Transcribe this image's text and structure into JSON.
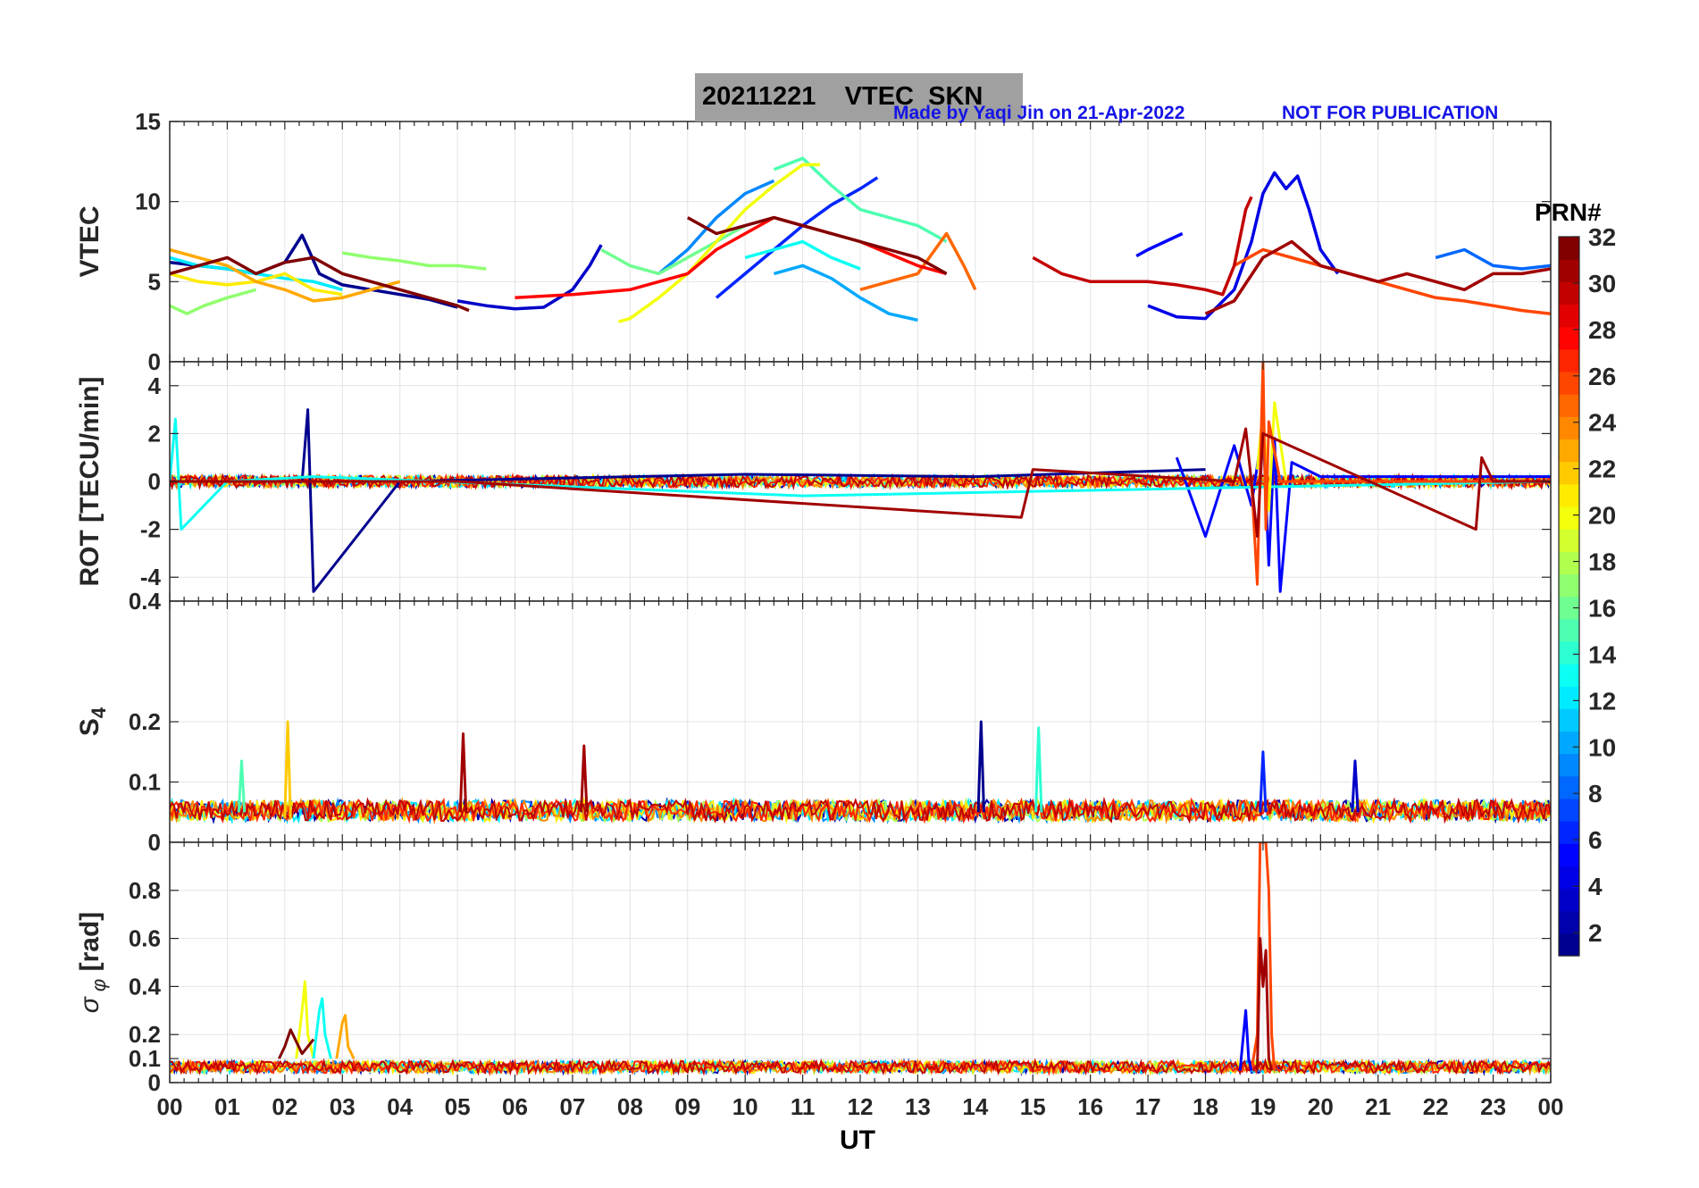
{
  "header": {
    "title": "20211221    VTEC  SKN",
    "credit": "Made by Yaqi Jin on 21-Apr-2022",
    "notice": "NOT FOR PUBLICATION"
  },
  "colorbar": {
    "title": "PRN#",
    "ticks": [
      "32",
      "30",
      "28",
      "26",
      "24",
      "22",
      "20",
      "18",
      "16",
      "14",
      "12",
      "10",
      "8",
      "6",
      "4",
      "2"
    ],
    "range": [
      1,
      32
    ],
    "colormap": "jet",
    "colors": [
      "#00008f",
      "#0000ff",
      "#0080ff",
      "#00ffff",
      "#80ff80",
      "#ffff00",
      "#ff8000",
      "#ff0000",
      "#800000"
    ]
  },
  "chart_data": [
    {
      "type": "line",
      "ylabel": "VTEC",
      "ylim": [
        0,
        15
      ],
      "yticks": [
        "0",
        "5",
        "10",
        "15"
      ],
      "xlim": [
        0,
        24
      ],
      "grid": true,
      "series": [
        {
          "prn": 1,
          "x": [
            0.0,
            0.5,
            1.0,
            1.5,
            2.0,
            2.3,
            2.6,
            3.0,
            3.5,
            4.0,
            4.5,
            5.0
          ],
          "values": [
            6.2,
            6.0,
            5.8,
            5.5,
            6.2,
            7.9,
            5.5,
            4.8,
            4.5,
            4.2,
            3.9,
            3.4
          ]
        },
        {
          "prn": 3,
          "x": [
            5.0,
            5.5,
            6.0,
            6.5,
            7.0,
            7.3,
            7.5
          ],
          "values": [
            3.8,
            3.5,
            3.3,
            3.4,
            4.5,
            6.0,
            7.3
          ]
        },
        {
          "prn": 5,
          "x": [
            16.8,
            17.0,
            17.3,
            17.6
          ],
          "values": [
            6.6,
            7.0,
            7.5,
            8.0
          ]
        },
        {
          "prn": 4,
          "x": [
            17.0,
            17.5,
            18.0,
            18.5,
            18.8,
            19.0,
            19.2,
            19.4,
            19.6,
            19.8,
            20.0,
            20.3
          ],
          "values": [
            3.5,
            2.8,
            2.7,
            4.5,
            7.5,
            10.5,
            11.8,
            10.8,
            11.6,
            9.5,
            7.0,
            5.5
          ]
        },
        {
          "prn": 6,
          "x": [
            9.5,
            10.0,
            10.5,
            11.0,
            11.5,
            12.0,
            12.3
          ],
          "values": [
            4.0,
            5.5,
            7.0,
            8.5,
            9.8,
            10.8,
            11.5
          ]
        },
        {
          "prn": 8,
          "x": [
            22.0,
            22.5,
            23.0,
            23.5,
            24.0
          ],
          "values": [
            6.5,
            7.0,
            6.0,
            5.8,
            6.0
          ]
        },
        {
          "prn": 9,
          "x": [
            8.5,
            9.0,
            9.5,
            10.0,
            10.5
          ],
          "values": [
            5.5,
            7.0,
            9.0,
            10.5,
            11.3
          ]
        },
        {
          "prn": 10,
          "x": [
            10.5,
            11.0,
            11.5,
            12.0,
            12.5,
            13.0
          ],
          "values": [
            5.5,
            6.0,
            5.2,
            4.0,
            3.0,
            2.6
          ]
        },
        {
          "prn": 12,
          "x": [
            0.0,
            0.5,
            1.0,
            1.5,
            2.0,
            2.5,
            3.0
          ],
          "values": [
            6.5,
            6.0,
            5.8,
            5.5,
            5.2,
            5.0,
            4.5
          ]
        },
        {
          "prn": 13,
          "x": [
            10.0,
            10.5,
            11.0,
            11.5,
            12.0
          ],
          "values": [
            6.5,
            7.0,
            7.5,
            6.5,
            5.8
          ]
        },
        {
          "prn": 15,
          "x": [
            10.5,
            11.0,
            11.5,
            12.0,
            12.5,
            13.0,
            13.5
          ],
          "values": [
            12.0,
            12.7,
            11.0,
            9.5,
            9.0,
            8.5,
            7.5
          ]
        },
        {
          "prn": 16,
          "x": [
            7.5,
            8.0,
            8.5,
            9.0,
            9.5,
            10.0
          ],
          "values": [
            7.0,
            6.0,
            5.5,
            6.5,
            7.5,
            8.5
          ]
        },
        {
          "prn": 17,
          "x": [
            0.0,
            0.3,
            0.6,
            1.0,
            1.5
          ],
          "values": [
            3.5,
            3.0,
            3.5,
            4.0,
            4.5
          ]
        },
        {
          "prn": 17,
          "x": [
            3.0,
            3.5,
            4.0,
            4.5,
            5.0,
            5.5
          ],
          "values": [
            6.8,
            6.5,
            6.3,
            6.0,
            6.0,
            5.8
          ]
        },
        {
          "prn": 20,
          "x": [
            7.8,
            8.0,
            8.5,
            9.0,
            9.5,
            10.0,
            10.5,
            11.0,
            11.3
          ],
          "values": [
            2.5,
            2.7,
            4.0,
            5.5,
            7.5,
            9.5,
            11.0,
            12.3,
            12.3
          ]
        },
        {
          "prn": 21,
          "x": [
            0.0,
            0.5,
            1.0,
            1.5,
            2.0,
            2.5,
            3.0
          ],
          "values": [
            5.5,
            5.0,
            4.8,
            5.0,
            5.5,
            4.5,
            4.2
          ]
        },
        {
          "prn": 23,
          "x": [
            0.0,
            0.5,
            1.0,
            1.5,
            2.0,
            2.5,
            3.0,
            3.5,
            4.0
          ],
          "values": [
            7.0,
            6.5,
            6.0,
            5.0,
            4.5,
            3.8,
            4.0,
            4.5,
            5.0
          ]
        },
        {
          "prn": 25,
          "x": [
            12.0,
            12.5,
            13.0,
            13.3,
            13.5,
            13.8,
            14.0
          ],
          "values": [
            4.5,
            5.0,
            5.5,
            7.0,
            8.0,
            6.0,
            4.5
          ]
        },
        {
          "prn": 26,
          "x": [
            18.5,
            19.0,
            19.5,
            20.0,
            20.5,
            21.0,
            21.5,
            22.0,
            22.5,
            23.0,
            23.5,
            24.0
          ],
          "values": [
            6.0,
            7.0,
            6.5,
            6.0,
            5.5,
            5.0,
            4.5,
            4.0,
            3.8,
            3.5,
            3.2,
            3.0
          ]
        },
        {
          "prn": 28,
          "x": [
            6.0,
            7.0,
            8.0,
            9.0,
            9.5,
            10.0,
            10.5,
            11.0,
            12.0,
            13.0,
            13.5
          ],
          "values": [
            4.0,
            4.2,
            4.5,
            5.5,
            7.0,
            8.0,
            9.0,
            8.5,
            7.5,
            6.0,
            5.5
          ]
        },
        {
          "prn": 30,
          "x": [
            15.0,
            15.5,
            16.0,
            16.5,
            17.0,
            17.5,
            18.0,
            18.3,
            18.5,
            18.7,
            18.8
          ],
          "values": [
            6.5,
            5.5,
            5.0,
            5.0,
            5.0,
            4.8,
            4.5,
            4.2,
            6.0,
            9.5,
            10.3
          ]
        },
        {
          "prn": 31,
          "x": [
            18.0,
            18.5,
            19.0,
            19.5,
            20.0,
            20.5,
            21.0,
            21.5,
            22.0,
            22.5,
            23.0,
            23.5,
            24.0
          ],
          "values": [
            3.0,
            3.8,
            6.5,
            7.5,
            6.0,
            5.5,
            5.0,
            5.5,
            5.0,
            4.5,
            5.5,
            5.5,
            5.8
          ]
        },
        {
          "prn": 32,
          "x": [
            0.0,
            0.5,
            1.0,
            1.5,
            2.0,
            2.5,
            3.0,
            3.5,
            4.0,
            4.5,
            5.0,
            5.2
          ],
          "values": [
            5.5,
            6.0,
            6.5,
            5.5,
            6.2,
            6.5,
            5.5,
            5.0,
            4.5,
            4.0,
            3.5,
            3.2
          ]
        },
        {
          "prn": 32,
          "x": [
            9.0,
            9.5,
            10.0,
            10.5,
            11.0,
            11.5,
            12.0,
            12.5,
            13.0,
            13.5
          ],
          "values": [
            9.0,
            8.0,
            8.5,
            9.0,
            8.5,
            8.0,
            7.5,
            7.0,
            6.5,
            5.5
          ]
        }
      ]
    },
    {
      "type": "line",
      "ylabel": "ROT [TECU/min]",
      "ylim": [
        -5,
        5
      ],
      "yticks": [
        "-4",
        "-2",
        "0",
        "2",
        "4"
      ],
      "xlim": [
        0,
        24
      ],
      "grid": true,
      "series": [
        {
          "prn": 1,
          "x": [
            0.0,
            2.3,
            2.4,
            2.5,
            4.0,
            10.0,
            14.0,
            18.0
          ],
          "values": [
            0.0,
            0.0,
            3.0,
            -4.6,
            0.0,
            0.3,
            0.2,
            0.5
          ]
        },
        {
          "prn": 5,
          "x": [
            17.5,
            18.0,
            18.5,
            18.8,
            19.0,
            19.1,
            19.2,
            19.3,
            19.5,
            20.0,
            24.0
          ],
          "values": [
            1.0,
            -2.3,
            1.5,
            -1.0,
            2.3,
            -3.5,
            1.8,
            -4.6,
            0.8,
            0.2,
            0.2
          ]
        },
        {
          "prn": 13,
          "x": [
            0.0,
            0.1,
            0.2,
            1.0,
            2.5,
            11.0,
            24.0
          ],
          "values": [
            0.0,
            2.6,
            -2.0,
            0.0,
            0.2,
            -0.6,
            0.0
          ]
        },
        {
          "prn": 20,
          "x": [
            18.9,
            19.0,
            19.1,
            19.2,
            19.4,
            24.0
          ],
          "values": [
            0.5,
            3.0,
            -1.2,
            3.3,
            0.0,
            0.0
          ]
        },
        {
          "prn": 26,
          "x": [
            18.8,
            18.9,
            19.0,
            19.05,
            19.1,
            19.3,
            24.0
          ],
          "values": [
            0.0,
            -4.3,
            5.0,
            -2.0,
            2.5,
            0.0,
            0.0
          ]
        },
        {
          "prn": 31,
          "x": [
            0.0,
            5.0,
            14.8,
            15.0,
            18.5,
            18.7,
            18.9,
            19.0,
            22.7,
            22.8,
            23.0,
            24.0
          ],
          "values": [
            0.0,
            0.0,
            -1.5,
            0.5,
            0.0,
            2.2,
            -2.3,
            2.0,
            -2.0,
            1.0,
            0.0,
            0.0
          ]
        }
      ]
    },
    {
      "type": "line",
      "ylabel": "S4",
      "ylim": [
        0,
        0.4
      ],
      "yticks": [
        "0",
        "0.1",
        "0.2",
        "0.4"
      ],
      "xlim": [
        0,
        24
      ],
      "grid": true,
      "series": [
        {
          "prn": 1,
          "x": [
            14.05,
            14.1,
            14.15
          ],
          "values": [
            0.05,
            0.2,
            0.05
          ]
        },
        {
          "prn": 14,
          "x": [
            15.05,
            15.1,
            15.15
          ],
          "values": [
            0.05,
            0.19,
            0.05
          ]
        },
        {
          "prn": 22,
          "x": [
            2.0,
            2.05,
            2.1
          ],
          "values": [
            0.04,
            0.2,
            0.04
          ]
        },
        {
          "prn": 31,
          "x": [
            5.05,
            5.1,
            5.15
          ],
          "values": [
            0.05,
            0.18,
            0.05
          ]
        },
        {
          "prn": 31,
          "x": [
            7.15,
            7.2,
            7.25
          ],
          "values": [
            0.05,
            0.16,
            0.05
          ]
        },
        {
          "prn": 15,
          "x": [
            1.2,
            1.25,
            1.3
          ],
          "values": [
            0.05,
            0.135,
            0.05
          ]
        },
        {
          "prn": 6,
          "x": [
            18.95,
            19.0,
            19.05
          ],
          "values": [
            0.05,
            0.15,
            0.05
          ]
        },
        {
          "prn": 3,
          "x": [
            20.55,
            20.6,
            20.65
          ],
          "values": [
            0.05,
            0.135,
            0.05
          ]
        }
      ]
    },
    {
      "type": "line",
      "ylabel": "σ_φ [rad]",
      "ylim": [
        0,
        1
      ],
      "yticks": [
        "0",
        "0.1",
        "0.2",
        "0.4",
        "0.6",
        "0.8"
      ],
      "xlim": [
        0,
        24
      ],
      "grid": true,
      "series": [
        {
          "prn": 26,
          "x": [
            18.8,
            18.9,
            18.95,
            19.0,
            19.05,
            19.1,
            19.15,
            19.2
          ],
          "values": [
            0.05,
            0.2,
            1.0,
            1.0,
            1.0,
            0.8,
            0.2,
            0.05
          ]
        },
        {
          "prn": 31,
          "x": [
            18.9,
            18.95,
            19.0,
            19.05,
            19.1,
            19.15
          ],
          "values": [
            0.05,
            0.6,
            0.4,
            0.55,
            0.1,
            0.05
          ]
        },
        {
          "prn": 5,
          "x": [
            18.6,
            18.7,
            18.75,
            18.8
          ],
          "values": [
            0.05,
            0.3,
            0.1,
            0.05
          ]
        },
        {
          "prn": 20,
          "x": [
            2.2,
            2.3,
            2.35,
            2.4,
            2.5
          ],
          "values": [
            0.1,
            0.3,
            0.42,
            0.2,
            0.1
          ]
        },
        {
          "prn": 13,
          "x": [
            2.5,
            2.6,
            2.65,
            2.7,
            2.8
          ],
          "values": [
            0.1,
            0.3,
            0.35,
            0.2,
            0.1
          ]
        },
        {
          "prn": 23,
          "x": [
            2.9,
            3.0,
            3.05,
            3.1,
            3.2
          ],
          "values": [
            0.1,
            0.25,
            0.28,
            0.15,
            0.1
          ]
        },
        {
          "prn": 32,
          "x": [
            1.9,
            2.0,
            2.1,
            2.3,
            2.5
          ],
          "values": [
            0.1,
            0.15,
            0.22,
            0.12,
            0.18
          ]
        }
      ]
    }
  ],
  "xaxis": {
    "label": "UT",
    "ticks": [
      "00",
      "01",
      "02",
      "03",
      "04",
      "05",
      "06",
      "07",
      "08",
      "09",
      "10",
      "11",
      "12",
      "13",
      "14",
      "15",
      "16",
      "17",
      "18",
      "19",
      "20",
      "21",
      "22",
      "23",
      "00"
    ]
  }
}
